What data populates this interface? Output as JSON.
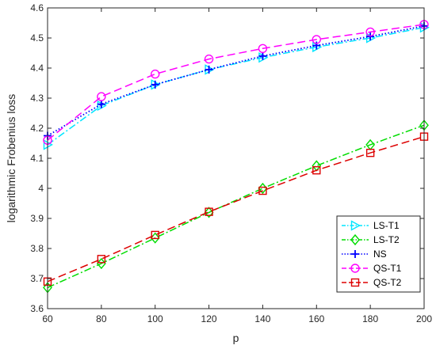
{
  "chart_data": {
    "type": "line",
    "title": "",
    "xlabel": "p",
    "ylabel": "logarithmic Frobenius loss",
    "x": [
      60,
      80,
      100,
      120,
      140,
      160,
      180,
      200
    ],
    "xlim": [
      60,
      200
    ],
    "ylim": [
      3.6,
      4.6
    ],
    "xticks": [
      "60",
      "80",
      "100",
      "120",
      "140",
      "160",
      "180",
      "200"
    ],
    "yticks": [
      "3.6",
      "3.7",
      "3.8",
      "3.9",
      "4",
      "4.1",
      "4.2",
      "4.3",
      "4.4",
      "4.5",
      "4.6"
    ],
    "grid": false,
    "legend_position": "bottom-right",
    "series": [
      {
        "name": "LS-T1",
        "color": "#00e5ff",
        "dash": "dash-dot",
        "marker": "triangle-right",
        "values": [
          4.145,
          4.275,
          4.345,
          4.395,
          4.435,
          4.47,
          4.5,
          4.535
        ]
      },
      {
        "name": "LS-T2",
        "color": "#00dd00",
        "dash": "dash-dot",
        "marker": "diamond",
        "values": [
          3.67,
          3.75,
          3.835,
          3.92,
          4.0,
          4.075,
          4.145,
          4.21
        ]
      },
      {
        "name": "NS",
        "color": "#0000ff",
        "dash": "dotted",
        "marker": "plus",
        "values": [
          4.175,
          4.28,
          4.345,
          4.395,
          4.44,
          4.475,
          4.505,
          4.54
        ]
      },
      {
        "name": "QS-T1",
        "color": "#ff00ff",
        "dash": "dashed",
        "marker": "circle",
        "values": [
          4.16,
          4.305,
          4.38,
          4.43,
          4.465,
          4.495,
          4.52,
          4.545
        ]
      },
      {
        "name": "QS-T2",
        "color": "#dd0000",
        "dash": "dashed",
        "marker": "square",
        "values": [
          3.69,
          3.765,
          3.845,
          3.922,
          3.992,
          4.06,
          4.118,
          4.172
        ]
      }
    ]
  }
}
